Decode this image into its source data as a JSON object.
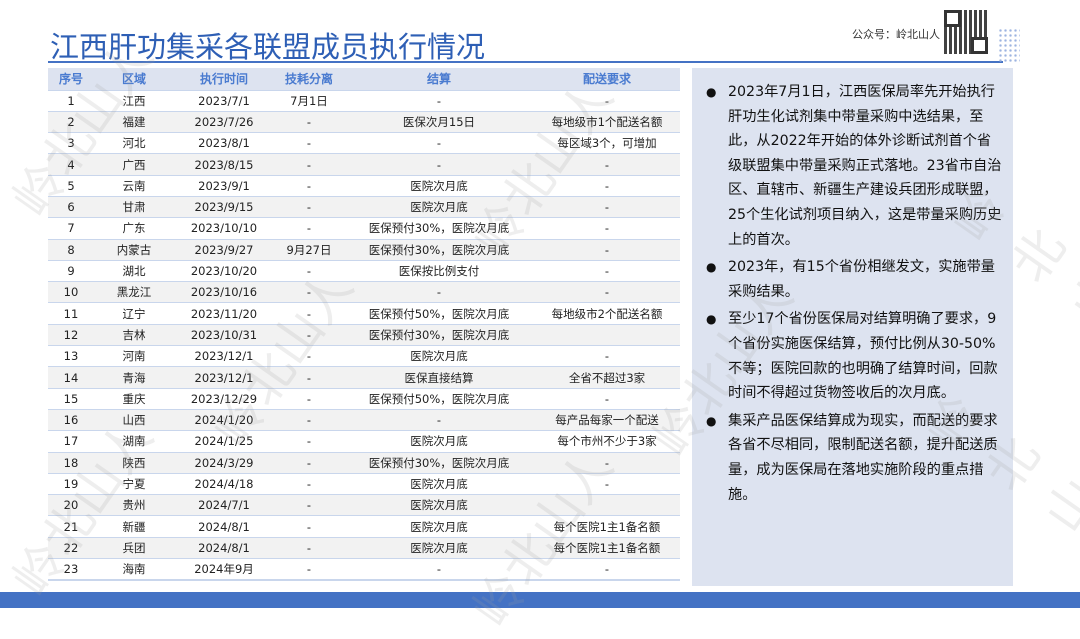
{
  "title": "江西肝功集采各联盟成员执行情况",
  "brand": {
    "label": "公众号：岭北山人",
    "watermark": "岭北山人"
  },
  "table": {
    "headers": [
      "序号",
      "区域",
      "执行时间",
      "技耗分离",
      "结算",
      "配送要求"
    ],
    "rows": [
      [
        "1",
        "江西",
        "2023/7/1",
        "7月1日",
        "-",
        "-"
      ],
      [
        "2",
        "福建",
        "2023/7/26",
        "-",
        "医保次月15日",
        "每地级市1个配送名额"
      ],
      [
        "3",
        "河北",
        "2023/8/1",
        "-",
        "-",
        "每区域3个，可增加"
      ],
      [
        "4",
        "广西",
        "2023/8/15",
        "-",
        "-",
        "-"
      ],
      [
        "5",
        "云南",
        "2023/9/1",
        "-",
        "医院次月底",
        "-"
      ],
      [
        "6",
        "甘肃",
        "2023/9/15",
        "-",
        "医院次月底",
        "-"
      ],
      [
        "7",
        "广东",
        "2023/10/10",
        "-",
        "医保预付30%，医院次月底",
        "-"
      ],
      [
        "8",
        "内蒙古",
        "2023/9/27",
        "9月27日",
        "医保预付30%，医院次月底",
        "-"
      ],
      [
        "9",
        "湖北",
        "2023/10/20",
        "-",
        "医保按比例支付",
        "-"
      ],
      [
        "10",
        "黑龙江",
        "2023/10/16",
        "-",
        "-",
        "-"
      ],
      [
        "11",
        "辽宁",
        "2023/11/20",
        "-",
        "医保预付50%，医院次月底",
        "每地级市2个配送名额"
      ],
      [
        "12",
        "吉林",
        "2023/10/31",
        "-",
        "医保预付30%，医院次月底",
        ""
      ],
      [
        "13",
        "河南",
        "2023/12/1",
        "-",
        "医院次月底",
        "-"
      ],
      [
        "14",
        "青海",
        "2023/12/1",
        "-",
        "医保直接结算",
        "全省不超过3家"
      ],
      [
        "15",
        "重庆",
        "2023/12/29",
        "-",
        "医保预付50%，医院次月底",
        "-"
      ],
      [
        "16",
        "山西",
        "2024/1/20",
        "-",
        "-",
        "每产品每家一个配送"
      ],
      [
        "17",
        "湖南",
        "2024/1/25",
        "-",
        "医院次月底",
        "每个市州不少于3家"
      ],
      [
        "18",
        "陕西",
        "2024/3/29",
        "-",
        "医保预付30%，医院次月底",
        "-"
      ],
      [
        "19",
        "宁夏",
        "2024/4/18",
        "-",
        "医院次月底",
        "-"
      ],
      [
        "20",
        "贵州",
        "2024/7/1",
        "-",
        "医院次月底",
        ""
      ],
      [
        "21",
        "新疆",
        "2024/8/1",
        "-",
        "医院次月底",
        "每个医院1主1备名额"
      ],
      [
        "22",
        "兵团",
        "2024/8/1",
        "-",
        "医院次月底",
        "每个医院1主1备名额"
      ],
      [
        "23",
        "海南",
        "2024年9月",
        "-",
        "-",
        "-"
      ]
    ]
  },
  "bullets": [
    "2023年7月1日，江西医保局率先开始执行肝功生化试剂集中带量采购中选结果，至此，从2022年开始的体外诊断试剂首个省级联盟集中带量采购正式落地。23省市自治区、直辖市、新疆生产建设兵团形成联盟，25个生化试剂项目纳入，这是带量采购历史上的首次。",
    "2023年，有15个省份相继发文，实施带量采购结果。",
    "至少17个省份医保局对结算明确了要求，9个省份实施医保结算，预付比例从30-50%不等；医院回款的也明确了结算时间，回款时间不得超过货物签收后的次月底。",
    "集采产品医保结算成为现实，而配送的要求各省不尽相同，限制配送名额，提升配送质量，成为医保局在落地实施阶段的重点措施。"
  ],
  "colors": {
    "accent": "#4472c4",
    "title": "#2e5fb5",
    "panel": "#dde3f0"
  }
}
